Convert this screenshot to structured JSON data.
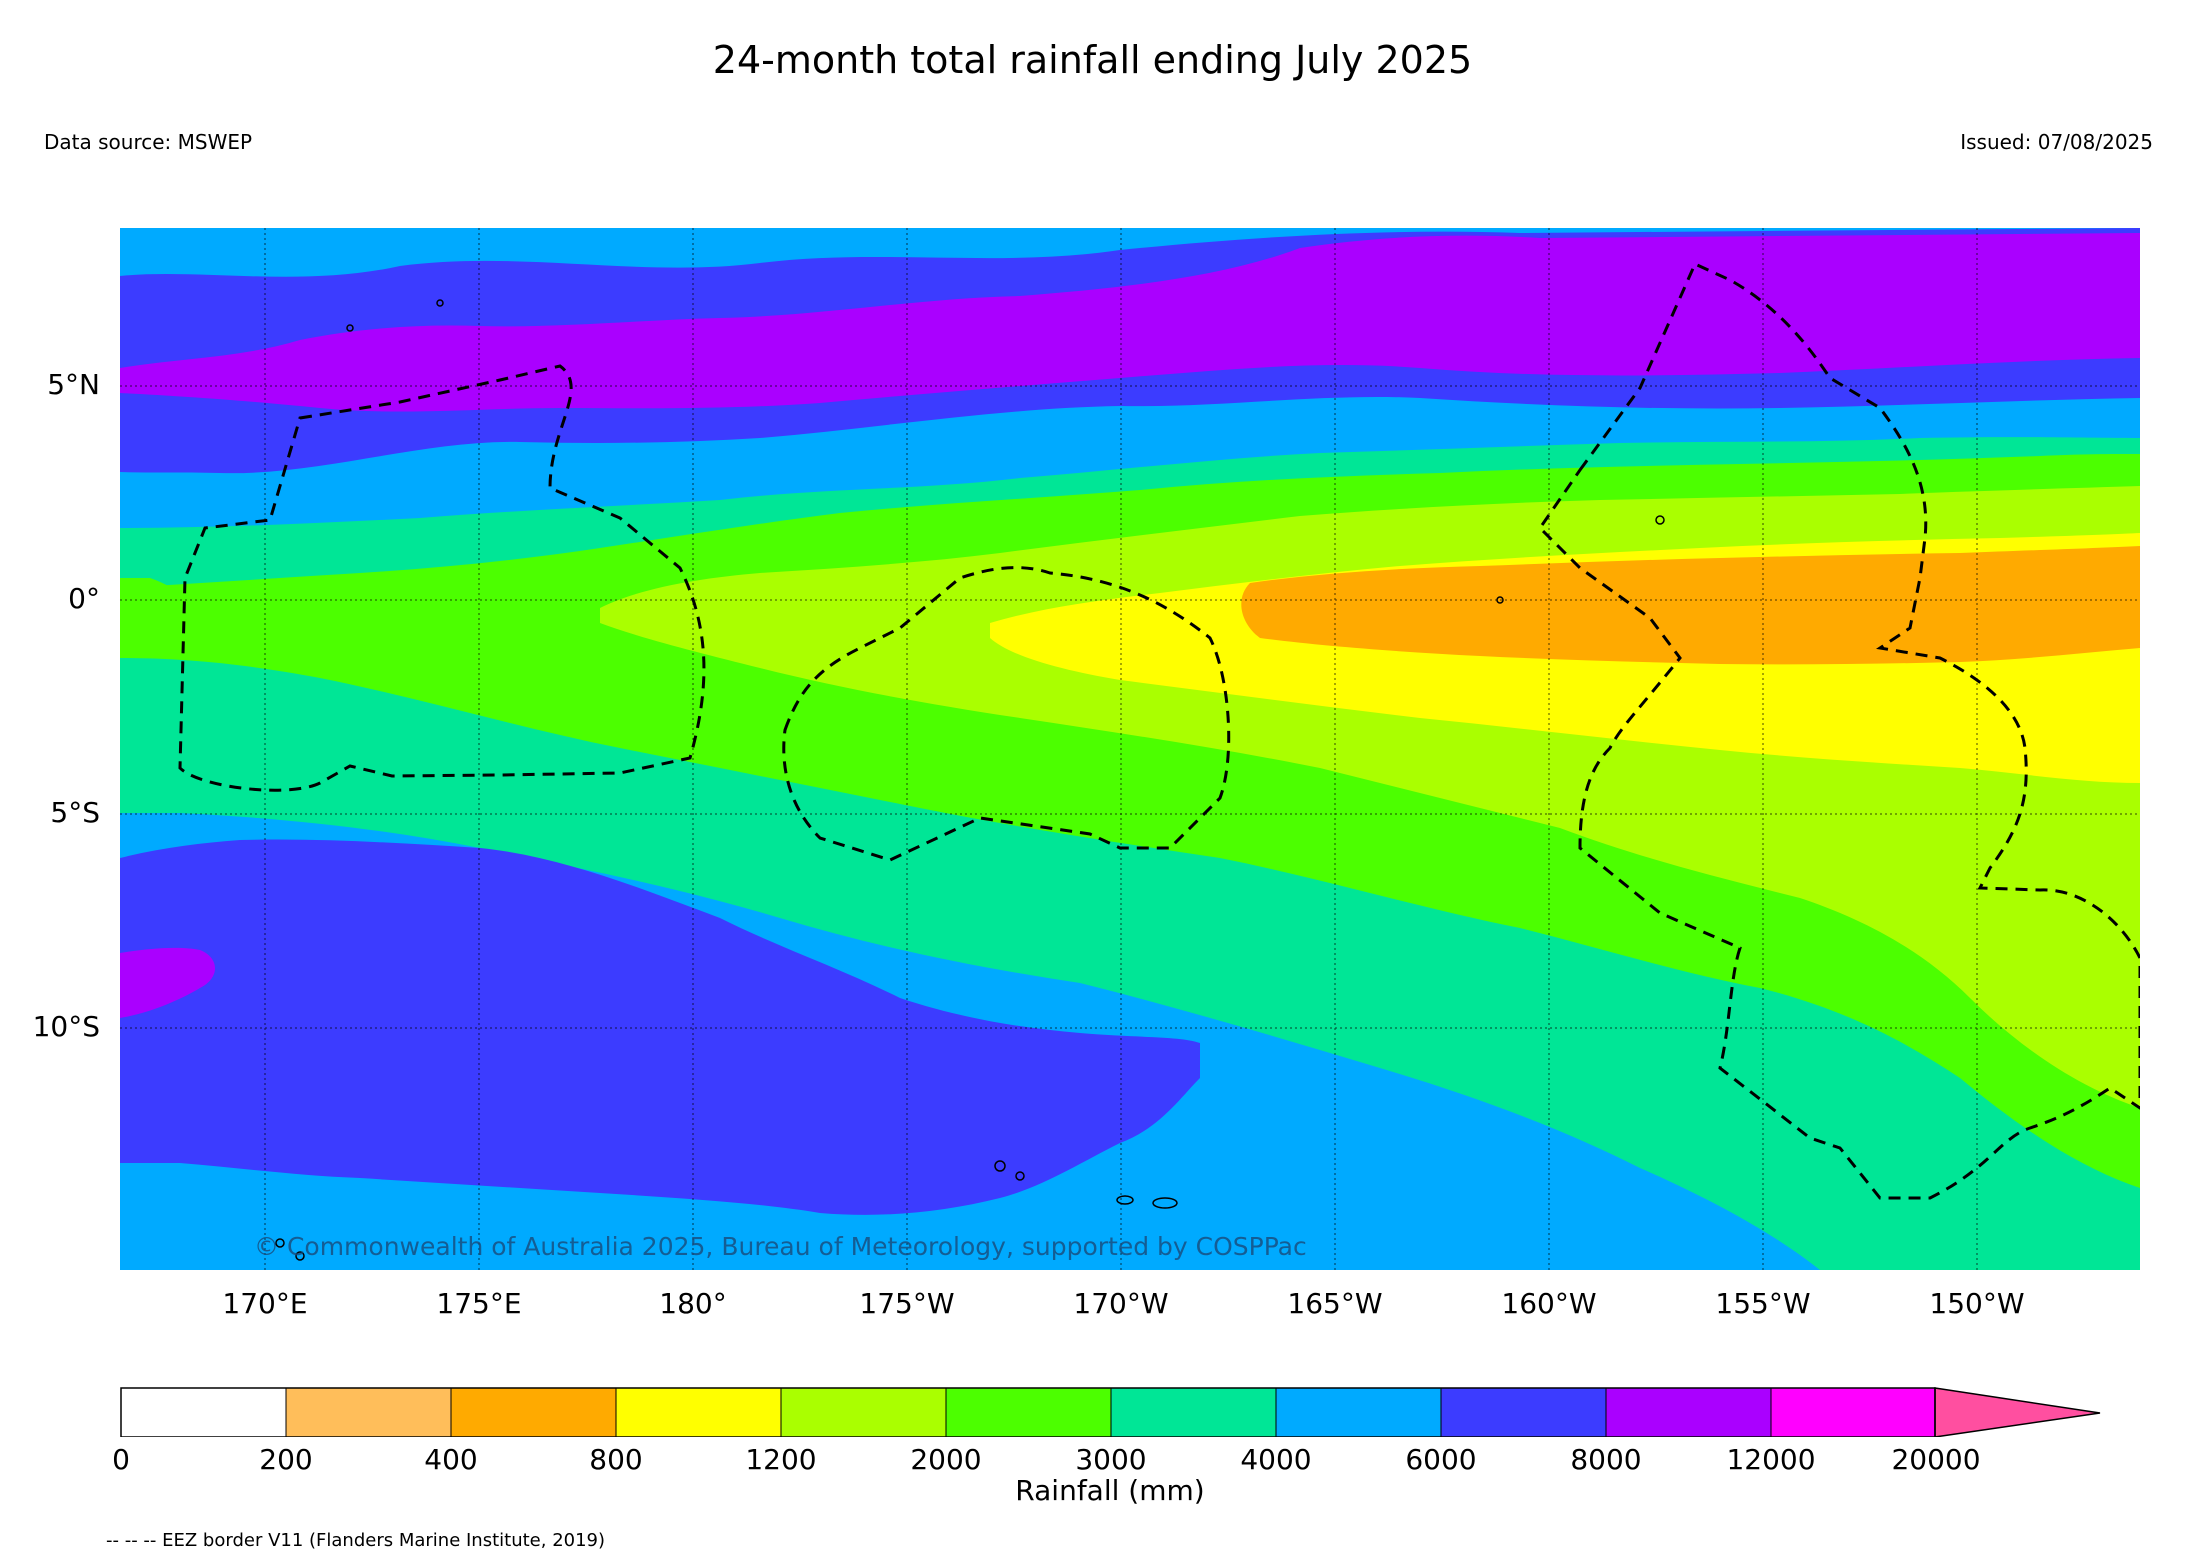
{
  "title": "24-month total rainfall ending July 2025",
  "data_source": "Data source: MSWEP",
  "issued": "Issued: 07/08/2025",
  "copyright": "© Commonwealth of Australia 2025, Bureau of Meteorology, supported by COSPPac",
  "eez_note": "-- -- -- EEZ border V11 (Flanders Marine Institute, 2019)",
  "lon_labels": [
    "170°E",
    "175°E",
    "180°",
    "175°W",
    "170°W",
    "165°W",
    "160°W",
    "155°W",
    "150°W"
  ],
  "lat_labels": [
    "5°N",
    "0°",
    "5°S",
    "10°S"
  ],
  "colorbar": {
    "title": "Rainfall (mm)",
    "tick_labels": [
      "0",
      "200",
      "400",
      "800",
      "1200",
      "2000",
      "3000",
      "4000",
      "6000",
      "8000",
      "12000",
      "20000"
    ],
    "colors": [
      "#ffffff",
      "#ffbe5a",
      "#ffaa00",
      "#ffff00",
      "#aaff00",
      "#4cff00",
      "#00e696",
      "#00aaff",
      "#3c3cff",
      "#aa00ff",
      "#ff00ff",
      "#ff4fa0"
    ]
  },
  "band_colors": {
    "c8000": "#aa00ff",
    "c6000": "#3c3cff",
    "c4000": "#00aaff",
    "c3000": "#00e696",
    "c2000": "#4cff00",
    "c1200": "#aaff00",
    "c800": "#ffff00",
    "c400": "#ffaa00"
  }
}
